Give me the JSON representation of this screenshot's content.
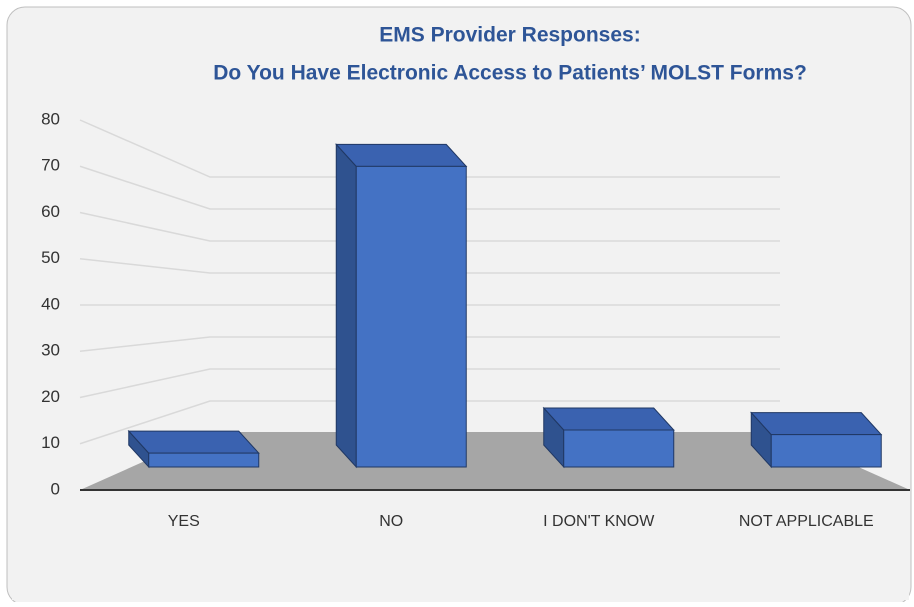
{
  "chart_data": {
    "type": "bar3d",
    "title": "EMS Provider Responses:",
    "subtitle": "Do You Have Electronic Access to Patients’ MOLST Forms?",
    "categories": [
      "YES",
      "NO",
      "I DON'T KNOW",
      "NOT APPLICABLE"
    ],
    "values": [
      3,
      65,
      8,
      7
    ],
    "color": "#4472c4",
    "ylim": [
      0,
      80
    ],
    "yticks": [
      0,
      10,
      20,
      30,
      40,
      50,
      60,
      70,
      80
    ],
    "grid": true
  }
}
